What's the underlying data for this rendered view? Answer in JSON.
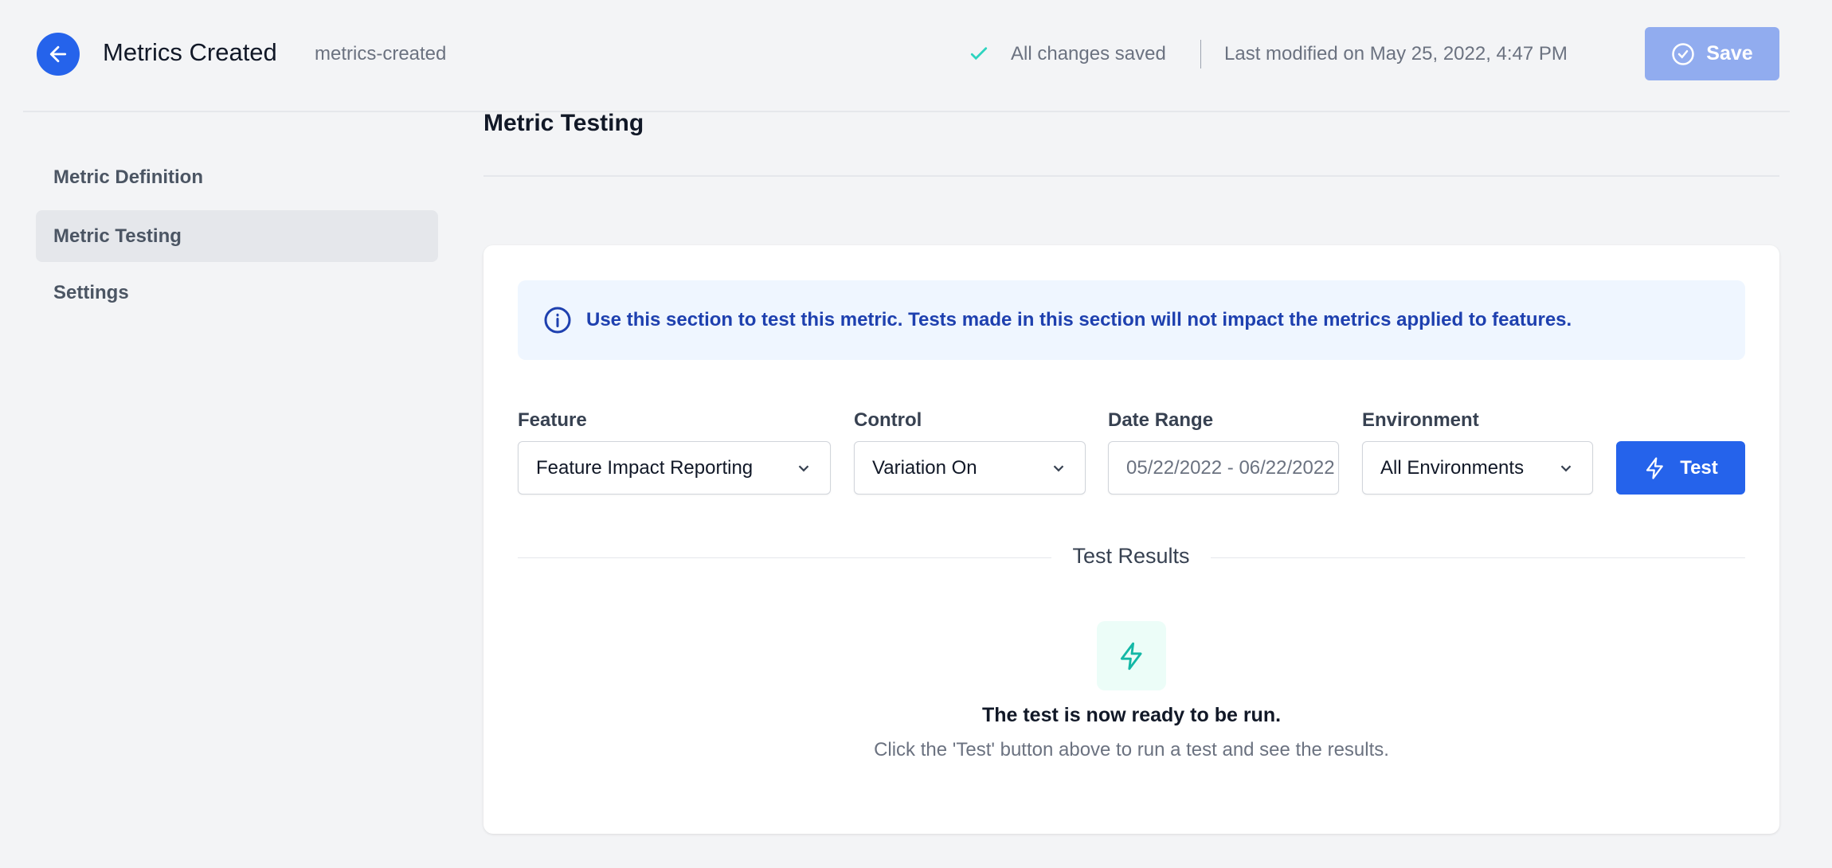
{
  "header": {
    "title": "Metrics Created",
    "slug": "metrics-created",
    "status": "All changes saved",
    "last_modified": "Last modified on May 25, 2022, 4:47 PM",
    "save_label": "Save"
  },
  "sidebar": {
    "items": [
      {
        "label": "Metric Definition",
        "active": false
      },
      {
        "label": "Metric Testing",
        "active": true
      },
      {
        "label": "Settings",
        "active": false
      }
    ]
  },
  "main": {
    "heading": "Metric Testing",
    "banner": {
      "part1": "Use this section to ",
      "bold1": "test",
      "part2": " this metric. Tests made in this section will ",
      "bold2": "not",
      "part3": " impact the metrics applied to features."
    },
    "form": {
      "feature": {
        "label": "Feature",
        "value": "Feature Impact Reporting"
      },
      "control": {
        "label": "Control",
        "value": "Variation On"
      },
      "date_range": {
        "label": "Date Range",
        "value": "05/22/2022 - 06/22/2022"
      },
      "environment": {
        "label": "Environment",
        "value": "All Environments"
      },
      "test_label": "Test"
    },
    "results": {
      "title": "Test Results",
      "ready": "The test is now ready to be run.",
      "hint": "Click the 'Test' button above to run a test and see the results."
    }
  },
  "colors": {
    "accent": "#2563eb",
    "success": "#14b8a6",
    "save_disabled": "#91acef"
  }
}
